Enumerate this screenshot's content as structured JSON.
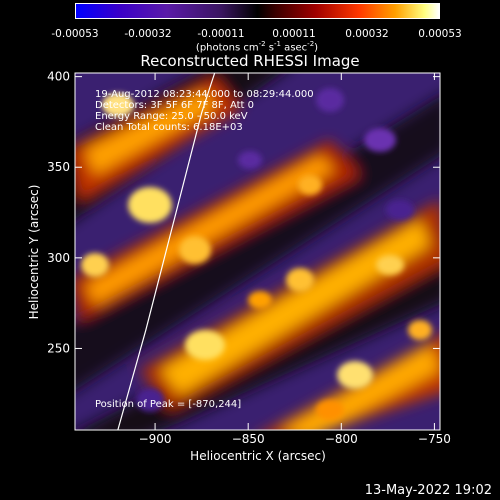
{
  "colorbar": {
    "ticks": [
      "-0.00053",
      "-0.00032",
      "-0.00011",
      "0.00011",
      "0.00032",
      "0.00053"
    ],
    "units_text": "(photons cm",
    "units_exp1": "-2",
    "units_mid": " s",
    "units_exp2": "-1",
    "units_mid2": " asec",
    "units_exp3": "-2",
    "units_end": ")"
  },
  "chart_data": {
    "type": "heatmap",
    "title": "Reconstructed RHESSI Image",
    "xlabel": "Heliocentric X (arcsec)",
    "ylabel": "Heliocentric Y (arcsec)",
    "xlim": [
      -943,
      -747
    ],
    "ylim": [
      205,
      402
    ],
    "xticks": [
      -900,
      -850,
      -800,
      -750
    ],
    "yticks": [
      250,
      300,
      350,
      400
    ],
    "xtick_labels": [
      "−900",
      "−850",
      "−800",
      "−750"
    ],
    "ytick_labels": [
      "250",
      "300",
      "350",
      "400"
    ],
    "colorbar_range": [
      -0.00053,
      0.00053
    ],
    "peak": [
      -870,
      244
    ],
    "limb_points": [
      [
        -920,
        205
      ],
      [
        -905,
        260
      ],
      [
        -890,
        320
      ],
      [
        -875,
        380
      ],
      [
        -868,
        402
      ]
    ]
  },
  "annotations": {
    "line1": "19-Aug-2012 08:23:44.000 to 08:29:44.000",
    "line2": "Detectors: 3F 5F 6F 7F 8F, Att 0",
    "line3": "Energy Range: 25.0 - 50.0 keV",
    "line4": "Clean    Total counts: 6.18E+03",
    "peak_label": "Position of Peak = [-870,244]"
  },
  "timestamp": "13-May-2022 19:02"
}
